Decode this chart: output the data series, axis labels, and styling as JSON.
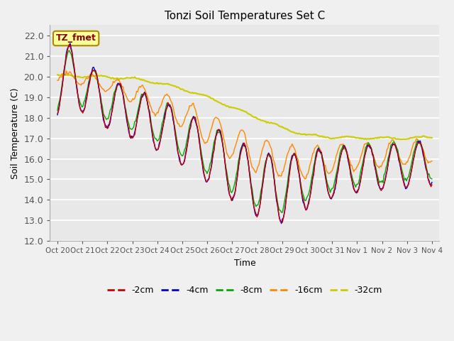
{
  "title": "Tonzi Soil Temperatures Set C",
  "xlabel": "Time",
  "ylabel": "Soil Temperature (C)",
  "ylim_min": 12.0,
  "ylim_max": 22.5,
  "yticks": [
    12.0,
    13.0,
    14.0,
    15.0,
    16.0,
    17.0,
    18.0,
    19.0,
    20.0,
    21.0,
    22.0
  ],
  "xtick_labels": [
    "Oct 20",
    "Oct 21",
    "Oct 22",
    "Oct 23",
    "Oct 24",
    "Oct 25",
    "Oct 26",
    "Oct 27",
    "Oct 28",
    "Oct 29",
    "Oct 30",
    "Oct 31",
    "Nov 1",
    "Nov 2",
    "Nov 3",
    "Nov 4"
  ],
  "series_colors": {
    "-2cm": "#cc0000",
    "-4cm": "#0000cc",
    "-8cm": "#00aa00",
    "-16cm": "#ff8800",
    "-32cm": "#cccc00"
  },
  "annotation_text": "TZ_fmet",
  "annotation_color": "#880000",
  "annotation_bg": "#ffff99",
  "annotation_border": "#aa8800",
  "fig_bg": "#f0f0f0",
  "plot_bg": "#e8e8e8",
  "grid_color": "#ffffff"
}
